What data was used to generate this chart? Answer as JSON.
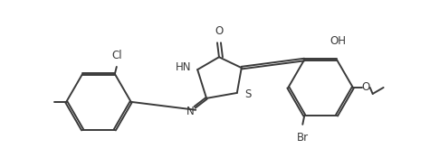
{
  "bg_color": "#ffffff",
  "line_color": "#3a3a3a",
  "line_width": 1.4,
  "font_size": 8.5,
  "figsize": [
    4.75,
    1.85
  ],
  "dpi": 100,
  "xlim": [
    0.0,
    4.75
  ],
  "ylim": [
    0.0,
    1.85
  ]
}
